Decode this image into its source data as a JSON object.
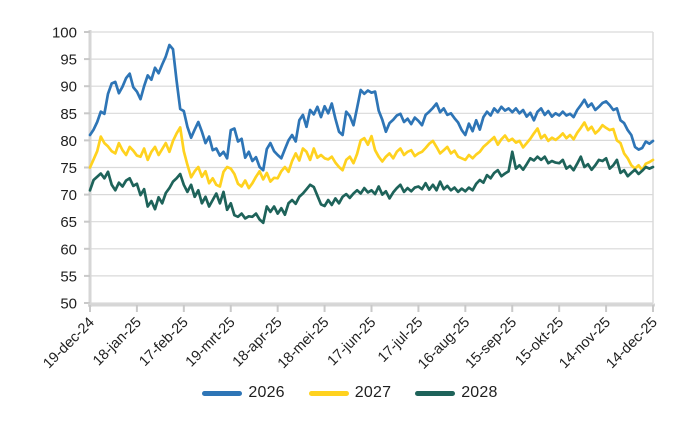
{
  "chart_data": {
    "type": "line",
    "title": "",
    "xlabel": "",
    "ylabel": "",
    "grid": true,
    "legend_position": "bottom",
    "y_axis": {
      "min": 50,
      "max": 100,
      "step": 5,
      "tick_labels": [
        "50",
        "55",
        "60",
        "65",
        "70",
        "75",
        "80",
        "85",
        "90",
        "95",
        "100"
      ]
    },
    "x_labels": [
      "19-dec-24",
      "18-jan-25",
      "17-feb-25",
      "19-mrt-25",
      "18-apr-25",
      "18-mei-25",
      "17-jun-25",
      "17-jul-25",
      "16-aug-25",
      "15-sep-25",
      "15-okt-25",
      "14-nov-25",
      "14-dec-25"
    ],
    "x_label_every": 13,
    "style": {
      "grid_color": "#D9D9D9",
      "axis_color": "#D6D6D6",
      "tick_color": "#C9C9C9",
      "text_color": "#1F1F1F",
      "background": "#FFFFFF"
    },
    "series": [
      {
        "name": "2026",
        "color": "#2E75B6",
        "values": [
          81.0,
          82.0,
          83.4,
          85.3,
          84.9,
          88.6,
          90.5,
          90.8,
          88.7,
          89.9,
          91.5,
          92.3,
          89.8,
          89.0,
          87.6,
          90.0,
          92.0,
          91.2,
          93.4,
          92.4,
          94.0,
          95.5,
          97.6,
          96.8,
          91.0,
          85.8,
          85.4,
          82.5,
          80.5,
          82.0,
          83.4,
          81.6,
          79.5,
          80.7,
          78.2,
          78.5,
          77.2,
          77.9,
          76.7,
          81.9,
          82.2,
          79.8,
          80.3,
          76.8,
          77.9,
          76.2,
          76.9,
          75.1,
          74.5,
          78.4,
          79.5,
          78.0,
          77.3,
          76.7,
          78.4,
          80.0,
          81.0,
          79.8,
          83.7,
          84.7,
          82.5,
          85.6,
          84.8,
          86.2,
          84.3,
          86.3,
          85.0,
          86.8,
          84.0,
          81.6,
          81.0,
          85.3,
          84.5,
          82.8,
          86.0,
          89.3,
          88.6,
          89.2,
          88.8,
          89.0,
          85.5,
          83.8,
          81.6,
          83.2,
          83.8,
          84.6,
          84.9,
          83.4,
          84.0,
          83.0,
          84.2,
          83.6,
          82.8,
          84.7,
          85.3,
          86.0,
          86.8,
          85.2,
          85.9,
          84.7,
          85.0,
          84.1,
          83.3,
          81.9,
          81.0,
          83.1,
          81.7,
          83.7,
          82.0,
          84.3,
          85.3,
          84.6,
          85.9,
          85.2,
          86.2,
          85.5,
          85.9,
          85.2,
          85.9,
          85.0,
          85.6,
          84.4,
          85.1,
          83.7,
          85.3,
          85.9,
          84.7,
          85.4,
          84.4,
          85.0,
          84.6,
          85.3,
          84.6,
          84.9,
          84.3,
          85.6,
          86.5,
          87.5,
          86.2,
          86.8,
          85.6,
          86.2,
          86.9,
          87.2,
          86.5,
          85.6,
          85.9,
          83.7,
          83.2,
          81.9,
          81.0,
          78.8,
          78.3,
          78.6,
          79.8,
          79.4,
          79.9
        ]
      },
      {
        "name": "2027",
        "color": "#FFD21F",
        "values": [
          75.0,
          76.5,
          78.0,
          80.7,
          79.5,
          78.9,
          78.0,
          77.6,
          79.5,
          78.2,
          77.3,
          78.8,
          78.1,
          77.2,
          77.0,
          78.5,
          76.4,
          77.9,
          78.8,
          77.3,
          78.4,
          79.5,
          77.9,
          79.9,
          81.3,
          82.4,
          78.0,
          75.5,
          73.2,
          74.3,
          75.1,
          73.3,
          74.3,
          72.1,
          73.0,
          71.8,
          71.5,
          74.2,
          75.1,
          74.8,
          73.8,
          72.0,
          71.5,
          72.6,
          71.2,
          72.1,
          73.3,
          74.3,
          72.8,
          74.0,
          72.4,
          73.1,
          73.0,
          74.3,
          75.1,
          74.2,
          76.2,
          77.6,
          76.3,
          78.5,
          77.9,
          76.4,
          78.5,
          76.8,
          77.3,
          76.7,
          76.5,
          77.0,
          75.9,
          75.1,
          74.5,
          76.4,
          77.0,
          75.8,
          77.5,
          80.0,
          80.4,
          79.2,
          80.8,
          78.2,
          77.0,
          76.1,
          77.0,
          77.6,
          76.7,
          77.9,
          78.5,
          77.3,
          77.9,
          78.2,
          77.1,
          77.6,
          77.9,
          78.6,
          79.4,
          79.9,
          78.8,
          77.6,
          78.2,
          78.8,
          77.6,
          78.1,
          77.0,
          76.7,
          76.4,
          77.3,
          76.7,
          77.4,
          77.9,
          78.8,
          79.4,
          80.0,
          80.6,
          79.2,
          80.2,
          80.9,
          79.9,
          80.3,
          79.6,
          79.9,
          78.7,
          79.5,
          80.3,
          81.3,
          82.2,
          80.4,
          81.0,
          79.9,
          80.5,
          80.1,
          80.6,
          81.3,
          80.4,
          81.0,
          80.2,
          81.4,
          82.3,
          83.3,
          81.9,
          82.5,
          81.3,
          81.9,
          82.8,
          82.3,
          81.9,
          82.1,
          80.0,
          79.5,
          77.6,
          76.7,
          75.4,
          74.8,
          75.4,
          74.5,
          75.7,
          76.0,
          76.4
        ]
      },
      {
        "name": "2028",
        "color": "#1E635A",
        "values": [
          70.8,
          72.7,
          73.3,
          73.9,
          73.0,
          74.2,
          71.8,
          70.8,
          72.2,
          71.5,
          72.6,
          73.0,
          71.6,
          72.0,
          69.9,
          71.0,
          67.8,
          68.8,
          67.3,
          69.5,
          68.4,
          70.3,
          71.2,
          72.4,
          73.0,
          73.8,
          71.8,
          70.5,
          71.8,
          69.6,
          70.8,
          68.4,
          69.6,
          67.8,
          69.0,
          70.2,
          68.4,
          70.5,
          67.2,
          68.4,
          66.2,
          65.9,
          66.5,
          65.6,
          66.0,
          65.9,
          66.5,
          65.4,
          64.8,
          67.8,
          66.8,
          67.8,
          66.5,
          67.5,
          66.3,
          68.4,
          69.0,
          68.3,
          69.6,
          70.2,
          71.0,
          71.8,
          71.4,
          69.8,
          68.2,
          67.9,
          69.0,
          68.1,
          69.3,
          68.4,
          69.6,
          70.1,
          69.4,
          70.2,
          70.8,
          70.2,
          71.2,
          70.4,
          70.8,
          70.1,
          71.5,
          70.0,
          70.6,
          69.3,
          70.4,
          71.2,
          71.8,
          70.5,
          71.2,
          70.6,
          71.3,
          71.5,
          71.0,
          72.1,
          70.9,
          71.8,
          70.8,
          72.4,
          71.0,
          71.6,
          70.8,
          71.3,
          70.5,
          71.1,
          70.6,
          71.3,
          70.8,
          72.0,
          72.7,
          72.2,
          73.6,
          73.0,
          74.0,
          74.5,
          73.4,
          73.9,
          74.3,
          77.9,
          74.8,
          75.4,
          74.6,
          75.6,
          76.7,
          76.3,
          77.0,
          76.4,
          77.0,
          75.8,
          76.2,
          75.9,
          75.8,
          76.4,
          74.8,
          75.3,
          74.5,
          75.7,
          77.0,
          75.1,
          75.6,
          74.6,
          75.4,
          76.4,
          76.2,
          76.7,
          74.8,
          75.4,
          76.4,
          74.0,
          74.5,
          73.4,
          74.0,
          74.6,
          73.8,
          74.4,
          75.1,
          74.8,
          75.1
        ]
      }
    ]
  }
}
